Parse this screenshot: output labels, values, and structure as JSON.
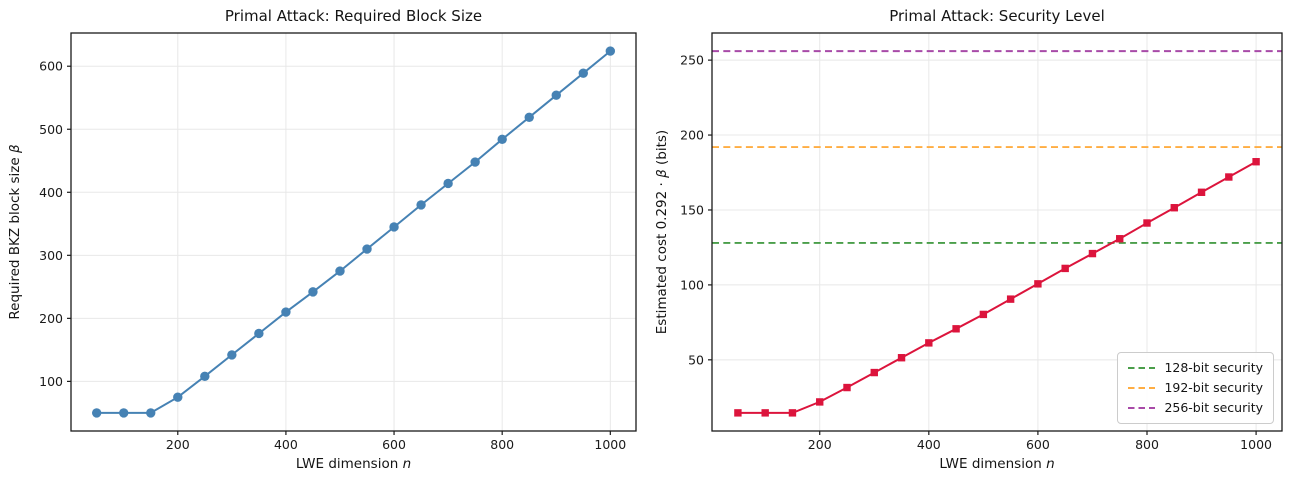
{
  "figure": {
    "background": "#ffffff",
    "grid_color": "#e8e8e8",
    "spine_color": "#1a1a1a"
  },
  "chart_data": [
    {
      "type": "line",
      "title": "Primal Attack: Required Block Size",
      "xlabel": "LWE dimension n",
      "ylabel": "Required BKZ block size β",
      "x": [
        50,
        100,
        150,
        200,
        250,
        300,
        350,
        400,
        450,
        500,
        550,
        600,
        650,
        700,
        750,
        800,
        850,
        900,
        950,
        1000
      ],
      "series": [
        {
          "name": "required-bkz-block-size",
          "color": "#4682b4",
          "marker": "circle",
          "values": [
            50,
            50,
            50,
            75,
            108,
            142,
            176,
            210,
            242,
            275,
            310,
            345,
            380,
            414,
            448,
            484,
            519,
            554,
            589,
            624
          ]
        }
      ],
      "xlim": [
        2.5,
        1047.5
      ],
      "ylim": [
        21.3,
        652.7
      ],
      "xticks": [
        200,
        400,
        600,
        800,
        1000
      ],
      "yticks": [
        100,
        200,
        300,
        400,
        500,
        600
      ],
      "grid": true,
      "legend": null
    },
    {
      "type": "line",
      "title": "Primal Attack: Security Level",
      "xlabel": "LWE dimension n",
      "ylabel": "Estimated cost 0.292 · β (bits)",
      "x": [
        50,
        100,
        150,
        200,
        250,
        300,
        350,
        400,
        450,
        500,
        550,
        600,
        650,
        700,
        750,
        800,
        850,
        900,
        950,
        1000
      ],
      "series": [
        {
          "name": "estimated-cost-bits",
          "color": "#dc143c",
          "marker": "square",
          "values": [
            14.6,
            14.6,
            14.6,
            21.9,
            31.5,
            41.5,
            51.4,
            61.3,
            70.7,
            80.3,
            90.5,
            100.7,
            111.0,
            120.9,
            130.8,
            141.3,
            151.5,
            161.8,
            172.0,
            182.2
          ]
        }
      ],
      "hlines": [
        {
          "label": "128-bit security",
          "y": 128,
          "color": "#4a9e4a",
          "style": "dashed"
        },
        {
          "label": "192-bit security",
          "y": 192,
          "color": "#ffad42",
          "style": "dashed"
        },
        {
          "label": "256-bit security",
          "y": 256,
          "color": "#a84aa8",
          "style": "dashed"
        }
      ],
      "xlim": [
        2.5,
        1047.5
      ],
      "ylim": [
        2.5,
        268.1
      ],
      "xticks": [
        200,
        400,
        600,
        800,
        1000
      ],
      "yticks": [
        50,
        100,
        150,
        200,
        250
      ],
      "grid": true,
      "legend": {
        "position": "lower right"
      }
    }
  ]
}
